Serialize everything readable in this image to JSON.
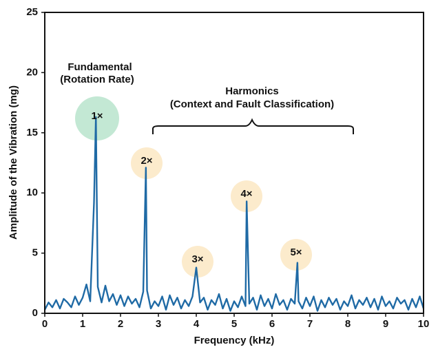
{
  "chart_data": {
    "type": "line",
    "x_label": "Frequency (kHz)",
    "y_label": "Amplitude of the Vibration (mg)",
    "xlim": [
      0,
      10
    ],
    "xticks": [
      0,
      1,
      2,
      3,
      4,
      5,
      6,
      7,
      8,
      9,
      10
    ],
    "ylim": [
      0,
      25
    ],
    "yticks": [
      0,
      5,
      10,
      15,
      20,
      25
    ],
    "grid": false,
    "x": [
      0,
      0.1,
      0.2,
      0.3,
      0.4,
      0.5,
      0.6,
      0.7,
      0.8,
      0.9,
      1.0,
      1.1,
      1.2,
      1.3,
      1.35,
      1.4,
      1.5,
      1.6,
      1.7,
      1.8,
      1.9,
      2.0,
      2.1,
      2.2,
      2.3,
      2.4,
      2.5,
      2.6,
      2.67,
      2.7,
      2.8,
      2.9,
      3.0,
      3.1,
      3.2,
      3.3,
      3.4,
      3.5,
      3.6,
      3.7,
      3.8,
      3.9,
      4.0,
      4.1,
      4.2,
      4.3,
      4.4,
      4.5,
      4.6,
      4.7,
      4.8,
      4.9,
      5.0,
      5.1,
      5.2,
      5.3,
      5.33,
      5.4,
      5.5,
      5.6,
      5.7,
      5.8,
      5.9,
      6.0,
      6.1,
      6.2,
      6.3,
      6.4,
      6.5,
      6.6,
      6.67,
      6.7,
      6.8,
      6.9,
      7.0,
      7.1,
      7.2,
      7.3,
      7.4,
      7.5,
      7.6,
      7.7,
      7.8,
      7.9,
      8.0,
      8.1,
      8.2,
      8.3,
      8.4,
      8.5,
      8.6,
      8.7,
      8.8,
      8.9,
      9.0,
      9.1,
      9.2,
      9.3,
      9.4,
      9.5,
      9.6,
      9.7,
      9.8,
      9.9,
      10.0
    ],
    "series": [
      {
        "color": "#1f6aa5",
        "values": [
          0.3,
          0.9,
          0.5,
          1.1,
          0.4,
          1.2,
          0.9,
          0.5,
          1.4,
          0.7,
          1.3,
          2.4,
          1.0,
          9.2,
          16.3,
          2.2,
          0.9,
          2.3,
          1.0,
          1.6,
          0.7,
          1.5,
          0.6,
          1.4,
          0.8,
          1.2,
          0.5,
          1.8,
          12.1,
          1.9,
          0.4,
          1.0,
          0.6,
          1.4,
          0.3,
          1.5,
          0.7,
          1.3,
          0.4,
          1.1,
          0.6,
          1.4,
          3.8,
          0.9,
          1.3,
          0.3,
          1.1,
          0.7,
          1.6,
          0.4,
          1.2,
          0.2,
          1.0,
          0.5,
          1.4,
          0.6,
          9.3,
          0.8,
          1.3,
          0.3,
          1.5,
          0.6,
          1.2,
          0.4,
          1.6,
          0.7,
          1.1,
          0.3,
          1.2,
          0.8,
          4.2,
          1.0,
          0.4,
          1.3,
          0.6,
          1.4,
          0.2,
          1.1,
          0.5,
          1.3,
          0.7,
          1.2,
          0.3,
          1.0,
          0.6,
          1.5,
          0.4,
          1.1,
          0.7,
          1.3,
          0.5,
          1.2,
          0.3,
          1.4,
          0.6,
          1.0,
          0.4,
          1.3,
          0.8,
          1.1,
          0.3,
          1.2,
          0.5,
          1.4,
          0.4
        ]
      }
    ],
    "peak_labels": [
      "1×",
      "2×",
      "3×",
      "4×",
      "5×"
    ],
    "annotations": [
      "Fundamental",
      "(Rotation Rate)",
      "Harmonics",
      "(Context and Fault Classification)"
    ]
  }
}
